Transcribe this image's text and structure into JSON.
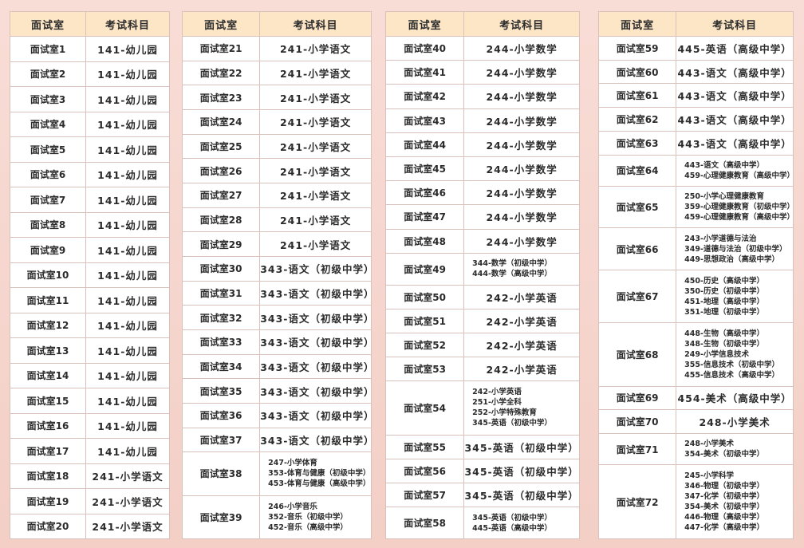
{
  "tables": [
    {
      "header": [
        "面试室",
        "考试科目"
      ],
      "rows": [
        [
          "面试室1",
          "141-幼儿园"
        ],
        [
          "面试室2",
          "141-幼儿园"
        ],
        [
          "面试室3",
          "141-幼儿园"
        ],
        [
          "面试室4",
          "141-幼儿园"
        ],
        [
          "面试室5",
          "141-幼儿园"
        ],
        [
          "面试室6",
          "141-幼儿园"
        ],
        [
          "面试室7",
          "141-幼儿园"
        ],
        [
          "面试室8",
          "141-幼儿园"
        ],
        [
          "面试室9",
          "141-幼儿园"
        ],
        [
          "面试室10",
          "141-幼儿园"
        ],
        [
          "面试室11",
          "141-幼儿园"
        ],
        [
          "面试室12",
          "141-幼儿园"
        ],
        [
          "面试室13",
          "141-幼儿园"
        ],
        [
          "面试室14",
          "141-幼儿园"
        ],
        [
          "面试室15",
          "141-幼儿园"
        ],
        [
          "面试室16",
          "141-幼儿园"
        ],
        [
          "面试室17",
          "141-幼儿园"
        ],
        [
          "面试室18",
          "241-小学语文"
        ],
        [
          "面试室19",
          "241-小学语文"
        ],
        [
          "面试室20",
          "241-小学语文"
        ]
      ]
    },
    {
      "header": [
        "面试室",
        "考试科目"
      ],
      "rows": [
        [
          "面试室21",
          "241-小学语文"
        ],
        [
          "面试室22",
          "241-小学语文"
        ],
        [
          "面试室23",
          "241-小学语文"
        ],
        [
          "面试室24",
          "241-小学语文"
        ],
        [
          "面试室25",
          "241-小学语文"
        ],
        [
          "面试室26",
          "241-小学语文"
        ],
        [
          "面试室27",
          "241-小学语文"
        ],
        [
          "面试室28",
          "241-小学语文"
        ],
        [
          "面试室29",
          "241-小学语文"
        ],
        [
          "面试室30",
          "343-语文（初级中学）"
        ],
        [
          "面试室31",
          "343-语文（初级中学）"
        ],
        [
          "面试室32",
          "343-语文（初级中学）"
        ],
        [
          "面试室33",
          "343-语文（初级中学）"
        ],
        [
          "面试室34",
          "343-语文（初级中学）"
        ],
        [
          "面试室35",
          "343-语文（初级中学）"
        ],
        [
          "面试室36",
          "343-语文（初级中学）"
        ],
        [
          "面试室37",
          "343-语文（初级中学）"
        ],
        [
          "面试室38",
          [
            "247-小学体育",
            "353-体育与健康（初级中学）",
            "453-体育与健康（高级中学）"
          ]
        ],
        [
          "面试室39",
          [
            "246-小学音乐",
            "352-音乐（初级中学）",
            "452-音乐（高级中学）"
          ]
        ]
      ]
    },
    {
      "header": [
        "面试室",
        "考试科目"
      ],
      "rows": [
        [
          "面试室40",
          "244-小学数学"
        ],
        [
          "面试室41",
          "244-小学数学"
        ],
        [
          "面试室42",
          "244-小学数学"
        ],
        [
          "面试室43",
          "244-小学数学"
        ],
        [
          "面试室44",
          "244-小学数学"
        ],
        [
          "面试室45",
          "244-小学数学"
        ],
        [
          "面试室46",
          "244-小学数学"
        ],
        [
          "面试室47",
          "244-小学数学"
        ],
        [
          "面试室48",
          "244-小学数学"
        ],
        [
          "面试室49",
          [
            "344-数学（初级中学）",
            "444-数学（高级中学）"
          ]
        ],
        [
          "面试室50",
          "242-小学英语"
        ],
        [
          "面试室51",
          "242-小学英语"
        ],
        [
          "面试室52",
          "242-小学英语"
        ],
        [
          "面试室53",
          "242-小学英语"
        ],
        [
          "面试室54",
          [
            "242-小学英语",
            "251-小学全科",
            "252-小学特殊教育",
            "345-英语（初级中学）"
          ]
        ],
        [
          "面试室55",
          "345-英语（初级中学）"
        ],
        [
          "面试室56",
          "345-英语（初级中学）"
        ],
        [
          "面试室57",
          "345-英语（初级中学）"
        ],
        [
          "面试室58",
          [
            "345-英语（初级中学）",
            "445-英语（高级中学）"
          ]
        ]
      ]
    },
    {
      "header": [
        "面试室",
        "考试科目"
      ],
      "rows": [
        [
          "面试室59",
          "445-英语（高级中学）"
        ],
        [
          "面试室60",
          "443-语文（高级中学）"
        ],
        [
          "面试室61",
          "443-语文（高级中学）"
        ],
        [
          "面试室62",
          "443-语文（高级中学）"
        ],
        [
          "面试室63",
          "443-语文（高级中学）"
        ],
        [
          "面试室64",
          [
            "443-语文（高级中学）",
            "459-心理健康教育（高级中学）"
          ]
        ],
        [
          "面试室65",
          [
            "250-小学心理健康教育",
            "359-心理健康教育（初级中学）",
            "459-心理健康教育（高级中学）"
          ]
        ],
        [
          "面试室66",
          [
            "243-小学道德与法治",
            "349-道德与法治（初级中学）",
            "449-思想政治（高级中学）"
          ]
        ],
        [
          "面试室67",
          [
            "450-历史（高级中学）",
            "350-历史（初级中学）",
            "451-地理（高级中学）",
            "351-地理（初级中学）"
          ]
        ],
        [
          "面试室68",
          [
            "448-生物（高级中学）",
            "348-生物（初级中学）",
            "249-小学信息技术",
            "355-信息技术（初级中学）",
            "455-信息技术（高级中学）"
          ]
        ],
        [
          "面试室69",
          "454-美术（高级中学）"
        ],
        [
          "面试室70",
          "248-小学美术"
        ],
        [
          "面试室71",
          [
            "248-小学美术",
            "354-美术（初级中学）"
          ]
        ],
        [
          "面试室72",
          [
            "245-小学科学",
            "346-物理（初级中学）",
            "347-化学（初级中学）",
            "354-美术（初级中学）",
            "446-物理（高级中学）",
            "447-化学（高级中学）"
          ]
        ]
      ]
    }
  ]
}
